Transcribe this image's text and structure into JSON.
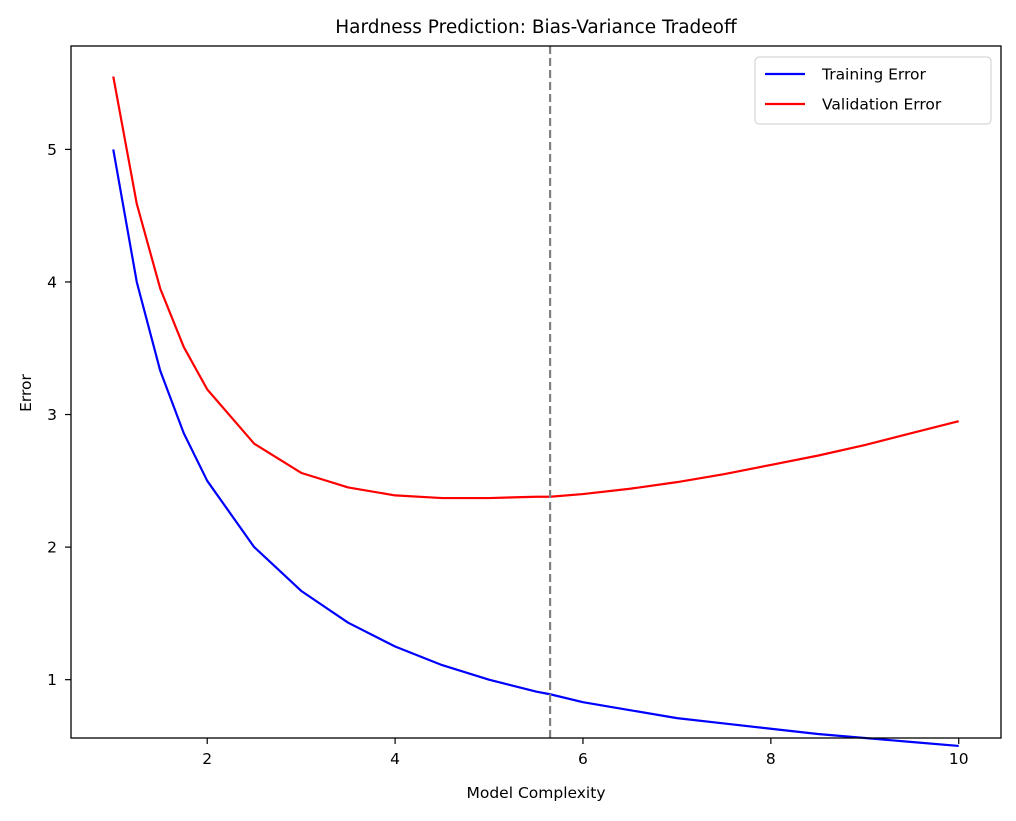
{
  "chart_data": {
    "type": "line",
    "title": "Hardness Prediction: Bias-Variance Tradeoff",
    "xlabel": "Model Complexity",
    "ylabel": "Error",
    "xlim": [
      0.55,
      10.45
    ],
    "ylim": [
      0.56,
      5.78
    ],
    "xticks": [
      2,
      4,
      6,
      8,
      10
    ],
    "yticks": [
      1,
      2,
      3,
      4,
      5
    ],
    "grid": false,
    "legend": {
      "position": "top-right"
    },
    "x": [
      1.0,
      1.25,
      1.5,
      1.75,
      2.0,
      2.5,
      3.0,
      3.5,
      4.0,
      4.5,
      5.0,
      5.5,
      5.65,
      6.0,
      6.5,
      7.0,
      7.5,
      8.0,
      8.5,
      9.0,
      9.5,
      10.0
    ],
    "series": [
      {
        "name": "Training Error",
        "color": "#0000ff",
        "values": [
          5.0,
          4.0,
          3.33,
          2.86,
          2.5,
          2.0,
          1.67,
          1.43,
          1.25,
          1.11,
          1.0,
          0.91,
          0.89,
          0.83,
          0.77,
          0.71,
          0.67,
          0.63,
          0.59,
          0.56,
          0.53,
          0.5
        ]
      },
      {
        "name": "Validation Error",
        "color": "#ff0000",
        "values": [
          5.55,
          4.59,
          3.95,
          3.51,
          3.19,
          2.78,
          2.56,
          2.45,
          2.39,
          2.37,
          2.37,
          2.38,
          2.38,
          2.4,
          2.44,
          2.49,
          2.55,
          2.62,
          2.69,
          2.77,
          2.86,
          2.95
        ]
      }
    ],
    "reference_line": {
      "x": 5.65,
      "style": "dashed",
      "color": "#808080"
    }
  }
}
